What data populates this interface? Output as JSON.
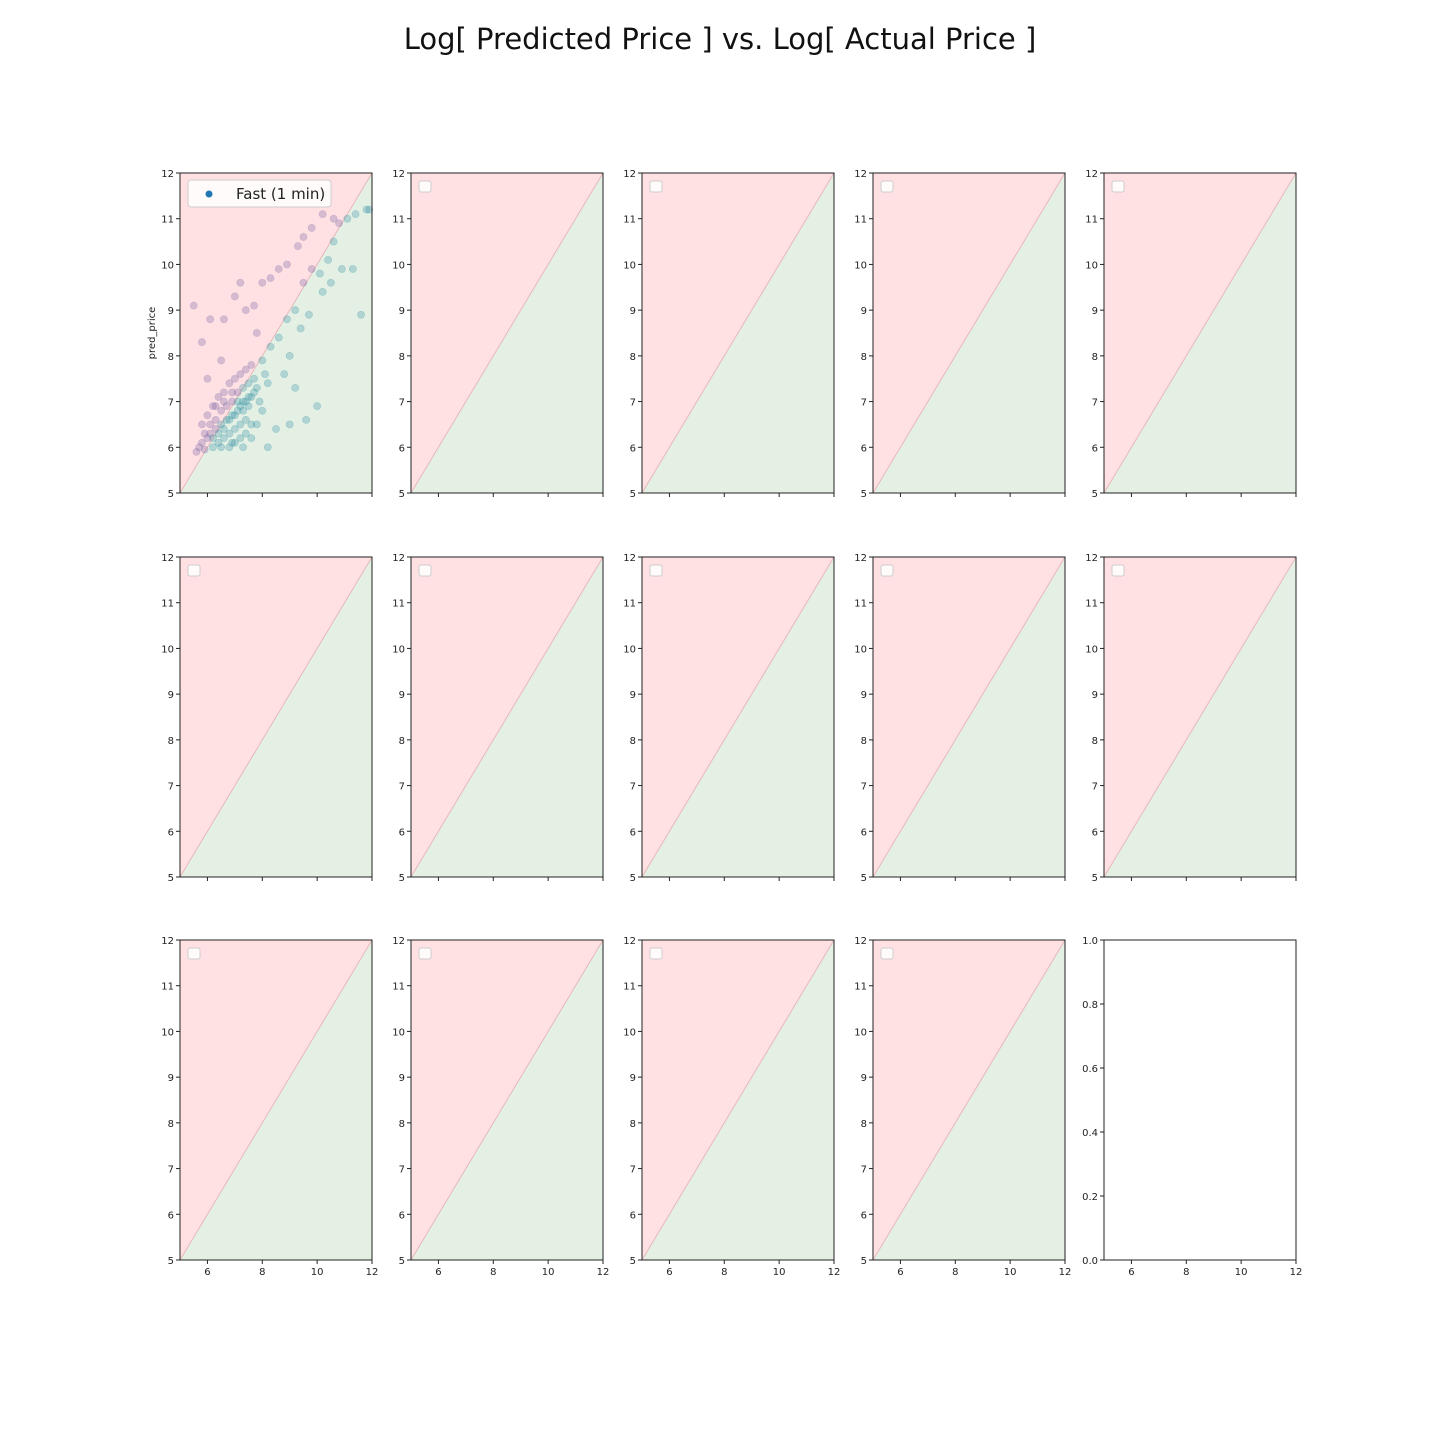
{
  "title": "Log[ Predicted Price ] vs. Log[ Actual Price ]",
  "chart_data": {
    "type": "scatter",
    "layout": "3x5 subplot grid (14 data panels + 1 empty panel)",
    "title": "Log[ Predicted Price ] vs. Log[ Actual Price ]",
    "xlim": [
      5,
      12
    ],
    "ylim": [
      5,
      12
    ],
    "x_ticks": [
      6,
      8,
      10,
      12
    ],
    "y_ticks": [
      5,
      6,
      7,
      8,
      9,
      10,
      11,
      12
    ],
    "x_tick_labels_visible_on": "bottom row only",
    "ylabel_first_panel": "pred_price",
    "diagonal": "y = x",
    "region_colors": {
      "overpredicted_above_diagonal": "#ffe1e4",
      "underpredicted_below_diagonal": "#e5f0e5",
      "diagonal": "#e8b8b8"
    },
    "series": [
      {
        "name": "Fast (1 min)",
        "color": "#1f77b4",
        "panel": 1,
        "points_note": "dense cluster roughly x 5.5-8.5, y 5.8-8; sparser points extend toward (11.8, 11.2); above-diagonal points tinted purple, below-diagonal tinted teal",
        "points": [
          [
            5.6,
            5.9
          ],
          [
            5.7,
            6.0
          ],
          [
            5.8,
            6.1
          ],
          [
            5.9,
            5.95
          ],
          [
            6.0,
            6.2
          ],
          [
            6.1,
            6.3
          ],
          [
            6.2,
            6.0
          ],
          [
            6.3,
            6.4
          ],
          [
            6.4,
            6.1
          ],
          [
            6.5,
            6.5
          ],
          [
            6.6,
            6.2
          ],
          [
            6.7,
            6.6
          ],
          [
            6.8,
            6.3
          ],
          [
            6.9,
            6.7
          ],
          [
            7.0,
            6.4
          ],
          [
            7.1,
            6.8
          ],
          [
            7.2,
            6.5
          ],
          [
            7.3,
            7.0
          ],
          [
            7.4,
            6.6
          ],
          [
            7.5,
            7.1
          ],
          [
            5.8,
            6.5
          ],
          [
            6.0,
            6.7
          ],
          [
            6.2,
            6.9
          ],
          [
            6.4,
            7.1
          ],
          [
            6.6,
            7.2
          ],
          [
            6.8,
            7.4
          ],
          [
            7.0,
            7.5
          ],
          [
            7.2,
            7.6
          ],
          [
            7.4,
            7.7
          ],
          [
            7.6,
            7.8
          ],
          [
            6.5,
            6.0
          ],
          [
            6.8,
            6.0
          ],
          [
            7.0,
            6.1
          ],
          [
            7.3,
            6.0
          ],
          [
            7.6,
            6.2
          ],
          [
            7.8,
            6.5
          ],
          [
            8.0,
            6.8
          ],
          [
            7.7,
            7.2
          ],
          [
            7.9,
            7.0
          ],
          [
            8.2,
            7.4
          ],
          [
            5.9,
            6.3
          ],
          [
            6.1,
            6.5
          ],
          [
            6.3,
            6.6
          ],
          [
            6.5,
            6.8
          ],
          [
            6.7,
            6.9
          ],
          [
            6.9,
            7.0
          ],
          [
            7.1,
            7.2
          ],
          [
            7.3,
            7.3
          ],
          [
            7.5,
            7.4
          ],
          [
            7.7,
            7.5
          ],
          [
            8.0,
            7.9
          ],
          [
            8.3,
            8.2
          ],
          [
            8.6,
            8.4
          ],
          [
            8.9,
            8.8
          ],
          [
            9.2,
            9.0
          ],
          [
            9.5,
            9.6
          ],
          [
            9.8,
            9.9
          ],
          [
            10.1,
            9.8
          ],
          [
            10.4,
            10.1
          ],
          [
            10.6,
            10.5
          ],
          [
            10.8,
            10.9
          ],
          [
            11.1,
            11.0
          ],
          [
            11.4,
            11.1
          ],
          [
            11.8,
            11.2
          ],
          [
            11.9,
            11.2
          ],
          [
            10.2,
            9.4
          ],
          [
            10.5,
            9.6
          ],
          [
            10.9,
            9.9
          ],
          [
            11.3,
            9.9
          ],
          [
            11.6,
            8.9
          ],
          [
            9.0,
            8.0
          ],
          [
            9.4,
            8.6
          ],
          [
            9.7,
            8.9
          ],
          [
            8.8,
            7.6
          ],
          [
            9.2,
            7.3
          ],
          [
            9.6,
            6.6
          ],
          [
            10.0,
            6.9
          ],
          [
            8.5,
            6.4
          ],
          [
            8.2,
            6.0
          ],
          [
            9.0,
            6.5
          ],
          [
            6.0,
            7.5
          ],
          [
            5.8,
            8.3
          ],
          [
            5.5,
            9.1
          ],
          [
            6.1,
            8.8
          ],
          [
            6.6,
            8.8
          ],
          [
            7.0,
            9.3
          ],
          [
            7.2,
            9.6
          ],
          [
            7.4,
            9.0
          ],
          [
            7.7,
            9.1
          ],
          [
            8.0,
            9.6
          ],
          [
            8.3,
            9.7
          ],
          [
            8.6,
            9.9
          ],
          [
            8.9,
            10.0
          ],
          [
            9.3,
            10.4
          ],
          [
            9.5,
            10.6
          ],
          [
            9.8,
            10.8
          ],
          [
            10.2,
            11.1
          ],
          [
            10.6,
            11.0
          ],
          [
            6.5,
            7.9
          ],
          [
            7.8,
            8.5
          ],
          [
            6.3,
            6.9
          ],
          [
            6.6,
            7.0
          ],
          [
            6.9,
            7.2
          ],
          [
            7.1,
            7.0
          ],
          [
            7.3,
            6.8
          ],
          [
            7.5,
            6.9
          ],
          [
            7.6,
            6.5
          ],
          [
            7.4,
            6.3
          ],
          [
            7.2,
            6.2
          ],
          [
            6.9,
            6.1
          ],
          [
            6.2,
            6.2
          ],
          [
            6.4,
            6.3
          ],
          [
            6.6,
            6.4
          ],
          [
            6.8,
            6.6
          ],
          [
            7.0,
            6.7
          ],
          [
            7.2,
            6.9
          ],
          [
            7.4,
            7.0
          ],
          [
            7.6,
            7.1
          ],
          [
            7.8,
            7.3
          ],
          [
            8.1,
            7.6
          ]
        ]
      }
    ],
    "legend": {
      "entries": [
        "Fast (1 min)"
      ],
      "location": "upper-left of panel 1",
      "other_panels": "empty legend box upper-left"
    },
    "empty_panel": {
      "panel": 15,
      "xlim": [
        5,
        12
      ],
      "ylim": [
        0,
        1
      ],
      "y_ticks": [
        "0.0",
        "0.2",
        "0.4",
        "0.6",
        "0.8",
        "1.0"
      ]
    }
  }
}
